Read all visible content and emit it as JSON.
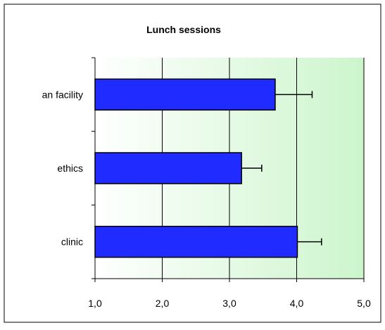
{
  "chart_data": {
    "type": "bar",
    "orientation": "horizontal",
    "title": "Lunch sessions",
    "categories": [
      "an facility",
      "ethics",
      "clinic"
    ],
    "values": [
      3.68,
      3.18,
      4.01
    ],
    "error_plus": [
      0.55,
      0.3,
      0.36
    ],
    "xlim": [
      1.0,
      5.0
    ],
    "xticks": [
      "1,0",
      "2,0",
      "3,0",
      "4,0",
      "5,0"
    ],
    "xtick_values": [
      1.0,
      2.0,
      3.0,
      4.0,
      5.0
    ],
    "grid": "vertical",
    "legend": "none",
    "colors": {
      "bar_fill": "#1f2bff",
      "bar_stroke": "#000000",
      "plot_bg_start": "#ffffff",
      "plot_bg_end": "#ccf5cc",
      "grid": "#000000",
      "border": "#000000"
    }
  }
}
